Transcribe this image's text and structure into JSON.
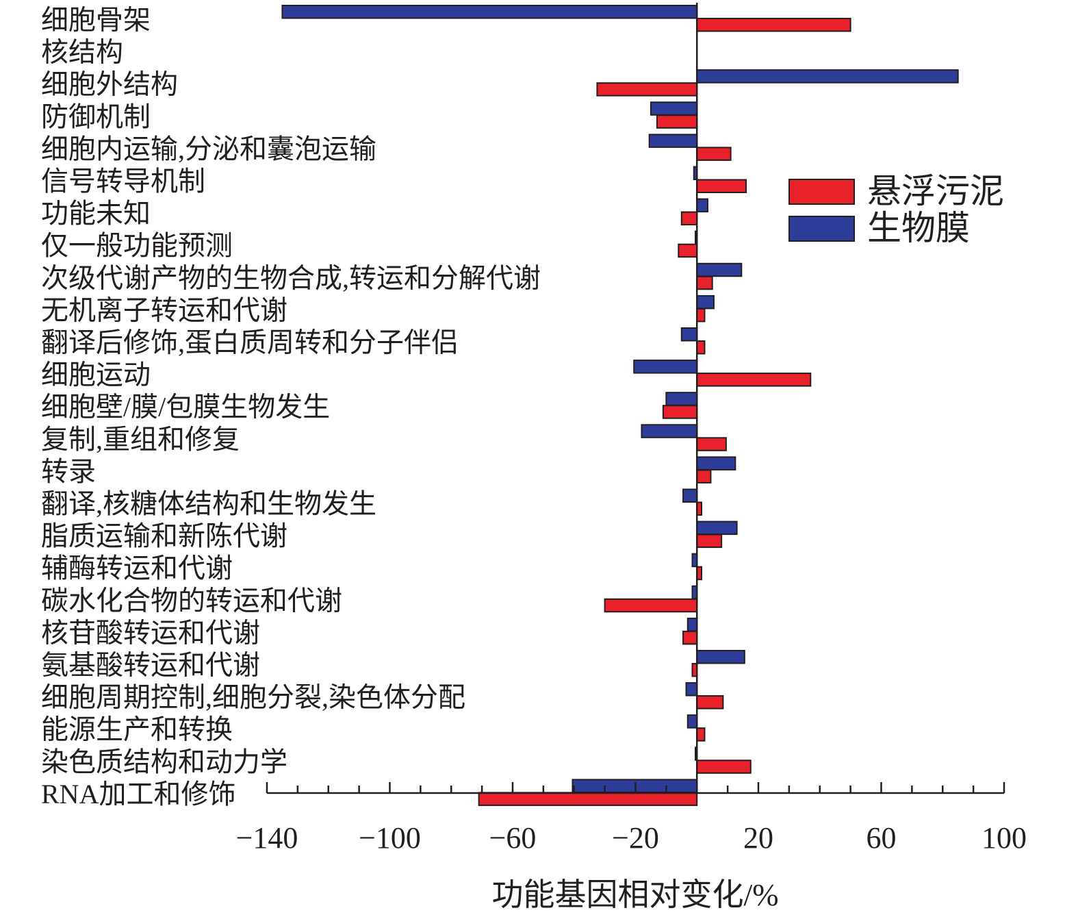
{
  "chart_data": {
    "type": "bar",
    "orientation": "horizontal",
    "title": "",
    "xlabel": "功能基因相对变化/%",
    "ylabel": "",
    "xlim": [
      -140,
      100
    ],
    "xticks": [
      -140,
      -100,
      -60,
      -20,
      20,
      60,
      100
    ],
    "xtick_labels": [
      "−140",
      "−100",
      "−60",
      "−20",
      "20",
      "60",
      "100"
    ],
    "legend_position": "right",
    "categories": [
      "细胞骨架",
      "核结构",
      "细胞外结构",
      "防御机制",
      "细胞内运输,分泌和囊泡运输",
      "信号转导机制",
      "功能未知",
      "仅一般功能预测",
      "次级代谢产物的生物合成,转运和分解代谢",
      "无机离子转运和代谢",
      "翻译后修饰,蛋白质周转和分子伴侣",
      "细胞运动",
      "细胞壁/膜/包膜生物发生",
      "复制,重组和修复",
      "转录",
      "翻译,核糖体结构和生物发生",
      "脂质运输和新陈代谢",
      "辅酶转运和代谢",
      "碳水化合物的转运和代谢",
      "核苷酸转运和代谢",
      "氨基酸转运和代谢",
      "细胞周期控制,细胞分裂,染色体分配",
      "能源生产和转换",
      "染色质结构和动力学",
      "RNA加工和修饰"
    ],
    "series": [
      {
        "name": "生物膜",
        "color": "#2e3d9a",
        "values": [
          -135,
          0,
          85,
          -15,
          -15.5,
          -1,
          3.5,
          -0.5,
          14.5,
          5.5,
          -5,
          -20.5,
          -10,
          -18,
          12.5,
          -4.5,
          13,
          -1.5,
          -1.5,
          -3,
          15.5,
          -3.5,
          -3,
          -0.5,
          -40.5
        ]
      },
      {
        "name": "悬浮污泥",
        "color": "#e8212b",
        "values": [
          50,
          0,
          -32.5,
          -13,
          11,
          16,
          -5,
          -6,
          5,
          2.5,
          2.5,
          37,
          -11,
          9.5,
          4.5,
          1.5,
          8,
          1.5,
          -30,
          -4.5,
          -1.5,
          8.5,
          2.5,
          17.5,
          -71
        ]
      }
    ]
  }
}
